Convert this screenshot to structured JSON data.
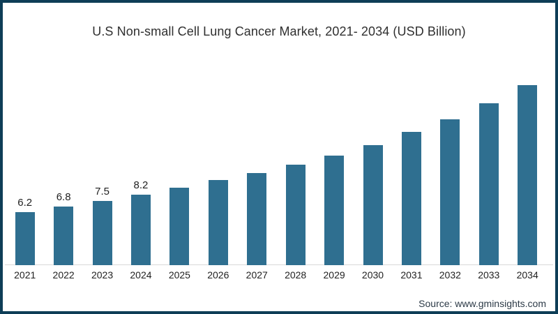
{
  "page": {
    "title": "U.S Non-small Cell Lung Cancer Market, 2021- 2034 (USD Billion)",
    "source": "Source: www.gminsights.com"
  },
  "colors": {
    "bar": "#2f6f90",
    "frame_border": "#0e3e57",
    "axis_line": "#d9d9d9",
    "title_text": "#2f2f2f",
    "label_text": "#1f1f1f",
    "source_text": "#2c3a47"
  },
  "chart_data": {
    "type": "bar",
    "title": "U.S Non-small Cell Lung Cancer Market, 2021- 2034 (USD Billion)",
    "categories": [
      "2021",
      "2022",
      "2023",
      "2024",
      "2025",
      "2026",
      "2027",
      "2028",
      "2029",
      "2030",
      "2031",
      "2032",
      "2033",
      "2034"
    ],
    "values": [
      6.2,
      6.8,
      7.5,
      8.2,
      9.0,
      9.9,
      10.7,
      11.7,
      12.8,
      14.0,
      15.5,
      17.0,
      18.9,
      21.0
    ],
    "bar_labels": [
      "6.2",
      "6.8",
      "7.5",
      "8.2",
      "",
      "",
      "",
      "",
      "",
      "",
      "",
      "",
      "",
      ""
    ],
    "xlabel": "",
    "ylabel": "",
    "ylim": [
      0,
      22
    ],
    "grid": false,
    "legend": "none"
  }
}
